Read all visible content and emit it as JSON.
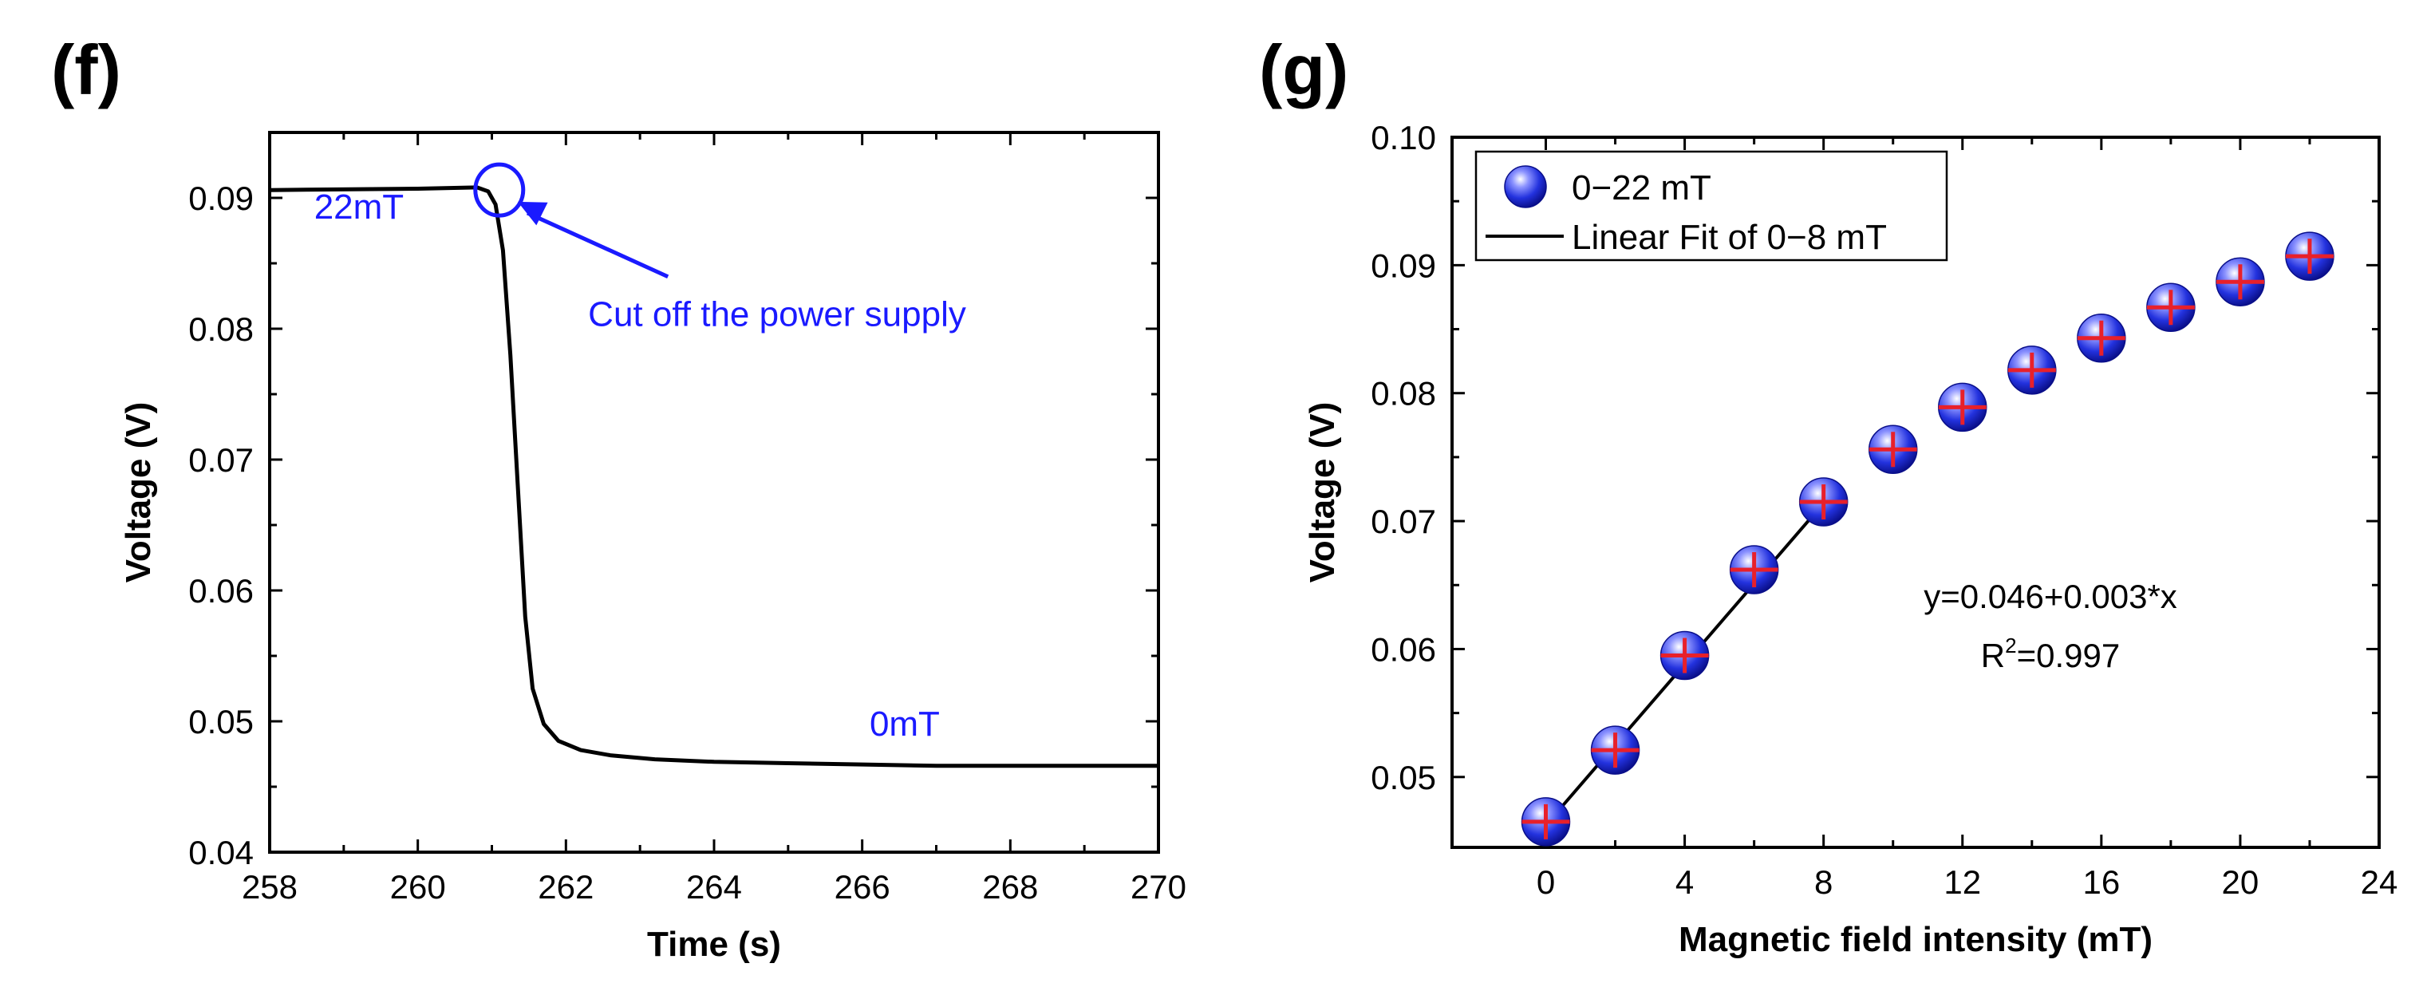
{
  "chart_data": [
    {
      "panel": "(f)",
      "type": "line",
      "xlabel": "Time (s)",
      "ylabel": "Voltage (V)",
      "xlim": [
        258,
        270
      ],
      "ylim": [
        0.04,
        0.095
      ],
      "xticks": [
        "258",
        "260",
        "262",
        "264",
        "266",
        "268",
        "270"
      ],
      "yticks": [
        "0.04",
        "0.05",
        "0.06",
        "0.07",
        "0.08",
        "0.09"
      ],
      "series": [
        {
          "name": "voltage",
          "color": "#000000",
          "x": [
            258,
            260,
            260.8,
            260.95,
            261.05,
            261.15,
            261.25,
            261.35,
            261.45,
            261.55,
            261.7,
            261.9,
            262.2,
            262.6,
            263.2,
            264,
            265,
            266,
            267,
            268,
            269,
            270
          ],
          "y": [
            0.0906,
            0.0907,
            0.0908,
            0.0905,
            0.0895,
            0.086,
            0.078,
            0.068,
            0.058,
            0.0525,
            0.0498,
            0.0485,
            0.0478,
            0.0474,
            0.0471,
            0.0469,
            0.0468,
            0.0467,
            0.0466,
            0.0466,
            0.0466,
            0.0466
          ]
        }
      ],
      "annotations": [
        {
          "text": "22mT",
          "x": 258.6,
          "y": 0.0884,
          "color": "#1a1aff"
        },
        {
          "text": "0mT",
          "x": 266.1,
          "y": 0.0489,
          "color": "#1a1aff"
        },
        {
          "text": "Cut off the power supply",
          "x": 262.3,
          "y": 0.0802,
          "color": "#1a1aff",
          "arrow_to": [
            261.35,
            0.0897
          ]
        }
      ],
      "highlight_circle": {
        "x": 261.1,
        "y": 0.0906,
        "color": "#1a1aff"
      }
    },
    {
      "panel": "(g)",
      "type": "scatter",
      "xlabel": "Magnetic  field intensity (mT)",
      "ylabel": "Voltage (V)",
      "xlim": [
        -2.7,
        24
      ],
      "ylim": [
        0.0445,
        0.1
      ],
      "xticks": [
        "0",
        "4",
        "8",
        "12",
        "16",
        "20",
        "24"
      ],
      "yticks": [
        "0.05",
        "0.06",
        "0.07",
        "0.08",
        "0.09",
        "0.10"
      ],
      "series": [
        {
          "name": "0−22 mT",
          "color": "#1f2bd1",
          "errorbar_color": "#e8202a",
          "x": [
            0,
            2,
            4,
            6,
            8,
            10,
            12,
            14,
            16,
            18,
            20,
            22
          ],
          "y": [
            0.0465,
            0.0521,
            0.0595,
            0.0662,
            0.0715,
            0.0756,
            0.0789,
            0.0818,
            0.0843,
            0.0867,
            0.0887,
            0.0907
          ]
        }
      ],
      "fit": {
        "name": "Linear Fit of 0−8 mT",
        "color": "#000000",
        "x": [
          -0.2,
          8
        ],
        "y": [
          0.0456,
          0.0714
        ],
        "equation": "y=0.046+0.003*x",
        "r2_label": "R",
        "r2_exp": "2",
        "r2_value": "=0.997"
      }
    }
  ]
}
